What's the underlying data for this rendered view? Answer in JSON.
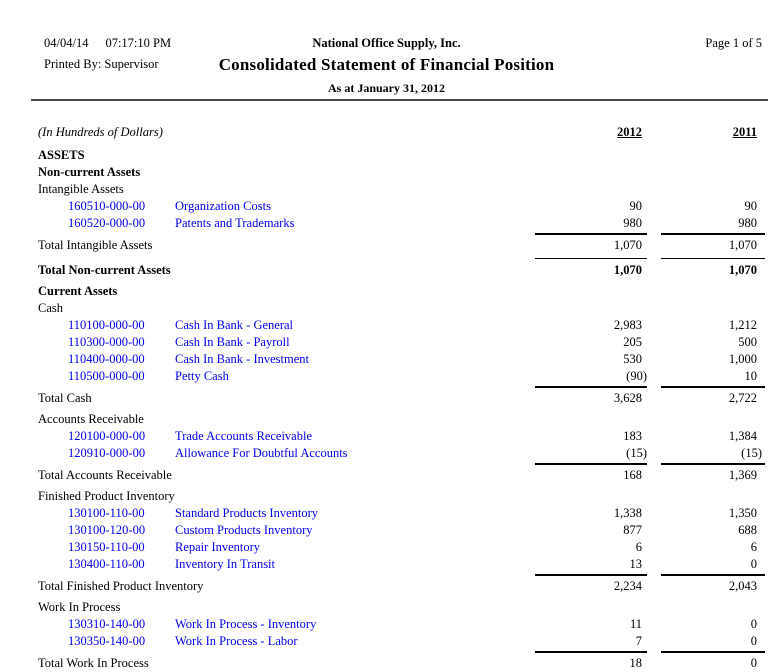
{
  "colors": {
    "account_link": "#0000EE",
    "header_rule": "#4a4a4a"
  },
  "header": {
    "date": "04/04/14",
    "time": "07:17:10 PM",
    "company": "National Office Supply, Inc.",
    "page": "Page 1 of 5",
    "printed_by": "Printed By: Supervisor",
    "title": "Consolidated Statement of Financial Position",
    "subtitle": "As at January 31, 2012"
  },
  "report": {
    "unit_note": "(In Hundreds of Dollars)",
    "year_col_1": "2012",
    "year_col_2": "2011",
    "rows": [
      {
        "type": "section",
        "label": "ASSETS"
      },
      {
        "type": "section",
        "label": "Non-current Assets"
      },
      {
        "type": "group",
        "label": "Intangible Assets"
      },
      {
        "type": "account",
        "number": "160510-000-00",
        "desc": "Organization Costs",
        "v2012": "90",
        "v2011": "90"
      },
      {
        "type": "account",
        "number": "160520-000-00",
        "desc": "Patents and Trademarks",
        "v2012": "980",
        "v2011": "980"
      },
      {
        "type": "total",
        "label": "Total Intangible Assets",
        "v2012": "1,070",
        "v2011": "1,070"
      },
      {
        "type": "grand",
        "label": "Total Non-current Assets",
        "v2012": "1,070",
        "v2011": "1,070"
      },
      {
        "type": "section",
        "label": "Current Assets"
      },
      {
        "type": "group",
        "label": "Cash"
      },
      {
        "type": "account",
        "number": "110100-000-00",
        "desc": "Cash In Bank - General",
        "v2012": "2,983",
        "v2011": "1,212"
      },
      {
        "type": "account",
        "number": "110300-000-00",
        "desc": "Cash In Bank - Payroll",
        "v2012": "205",
        "v2011": "500"
      },
      {
        "type": "account",
        "number": "110400-000-00",
        "desc": "Cash In Bank - Investment",
        "v2012": "530",
        "v2011": "1,000"
      },
      {
        "type": "account",
        "number": "110500-000-00",
        "desc": "Petty Cash",
        "v2012": "(90)",
        "v2011": "10"
      },
      {
        "type": "total",
        "label": "Total Cash",
        "v2012": "3,628",
        "v2011": "2,722"
      },
      {
        "type": "group",
        "label": "Accounts Receivable"
      },
      {
        "type": "account",
        "number": "120100-000-00",
        "desc": "Trade Accounts Receivable",
        "v2012": "183",
        "v2011": "1,384"
      },
      {
        "type": "account",
        "number": "120910-000-00",
        "desc": "Allowance For Doubtful Accounts",
        "v2012": "(15)",
        "v2011": "(15)"
      },
      {
        "type": "total",
        "label": "Total Accounts Receivable",
        "v2012": "168",
        "v2011": "1,369"
      },
      {
        "type": "group",
        "label": "Finished Product Inventory"
      },
      {
        "type": "account",
        "number": "130100-110-00",
        "desc": "Standard Products Inventory",
        "v2012": "1,338",
        "v2011": "1,350"
      },
      {
        "type": "account",
        "number": "130100-120-00",
        "desc": "Custom Products Inventory",
        "v2012": "877",
        "v2011": "688"
      },
      {
        "type": "account",
        "number": "130150-110-00",
        "desc": "Repair Inventory",
        "v2012": "6",
        "v2011": "6"
      },
      {
        "type": "account",
        "number": "130400-110-00",
        "desc": "Inventory In Transit",
        "v2012": "13",
        "v2011": "0"
      },
      {
        "type": "total",
        "label": "Total Finished Product Inventory",
        "v2012": "2,234",
        "v2011": "2,043"
      },
      {
        "type": "group",
        "label": "Work In Process"
      },
      {
        "type": "account",
        "number": "130310-140-00",
        "desc": "Work In Process - Inventory",
        "v2012": "11",
        "v2011": "0"
      },
      {
        "type": "account",
        "number": "130350-140-00",
        "desc": "Work In Process - Labor",
        "v2012": "7",
        "v2011": "0"
      },
      {
        "type": "total",
        "label": "Total Work In Process",
        "v2012": "18",
        "v2011": "0"
      }
    ]
  }
}
